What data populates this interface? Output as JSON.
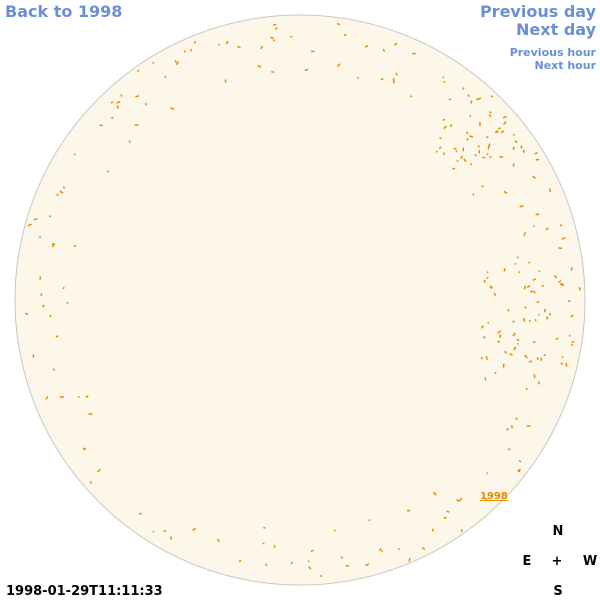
{
  "nav": {
    "back": "Back to 1998",
    "previous_day": "Previous day",
    "next_day": "Next day",
    "previous_hour": "Previous hour",
    "next_hour": "Next hour"
  },
  "disk_label": "1998",
  "timestamp": "1998-01-29T11:11:33",
  "compass": {
    "north": "N",
    "east": "E",
    "center": "+",
    "west": "W",
    "south": "S"
  }
}
